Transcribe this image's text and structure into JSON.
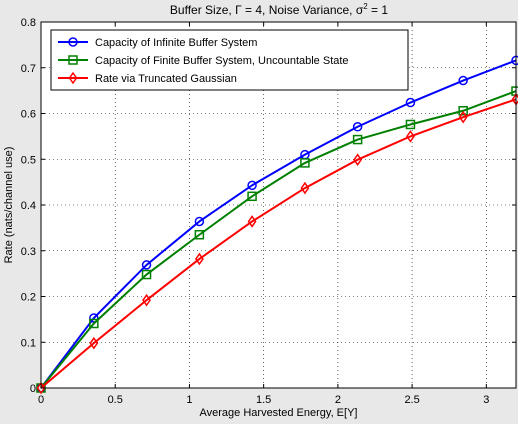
{
  "chart_data": {
    "type": "line",
    "title": {
      "pre": "Buffer Size, Γ = 4, Noise Variance, σ",
      "sup": "2",
      "post": " = 1"
    },
    "xlabel": "Average Harvested Energy, E[Y]",
    "ylabel": "Rate (nats/channel use)",
    "xlim": [
      0,
      3.2
    ],
    "ylim": [
      0,
      0.8
    ],
    "xticks": [
      0,
      0.5,
      1,
      1.5,
      2,
      2.5,
      3
    ],
    "xtick_labels": [
      "0",
      "0.5",
      "1",
      "1.5",
      "2",
      "2.5",
      "3"
    ],
    "yticks": [
      0,
      0.1,
      0.2,
      0.3,
      0.4,
      0.5,
      0.6,
      0.7,
      0.8
    ],
    "ytick_labels": [
      "0",
      "0.1",
      "0.2",
      "0.3",
      "0.4",
      "0.5",
      "0.6",
      "0.7",
      "0.8"
    ],
    "grid": true,
    "legend_position": "top-left",
    "x": [
      0,
      0.356,
      0.711,
      1.067,
      1.422,
      1.778,
      2.133,
      2.489,
      2.844,
      3.2
    ],
    "series": [
      {
        "name": "Capacity of Infinite Buffer System",
        "color": "#0000ff",
        "marker": "circle",
        "values": [
          0,
          0.153,
          0.269,
          0.364,
          0.443,
          0.51,
          0.571,
          0.624,
          0.672,
          0.716
        ]
      },
      {
        "name": "Capacity of Finite Buffer System, Uncountable State",
        "color": "#008000",
        "marker": "square",
        "values": [
          0,
          0.141,
          0.248,
          0.335,
          0.419,
          0.492,
          0.543,
          0.576,
          0.606,
          0.649
        ]
      },
      {
        "name": "Rate via Truncated Gaussian",
        "color": "#ff0000",
        "marker": "diamond",
        "values": [
          0,
          0.098,
          0.192,
          0.282,
          0.364,
          0.437,
          0.499,
          0.55,
          0.592,
          0.631
        ]
      }
    ]
  }
}
